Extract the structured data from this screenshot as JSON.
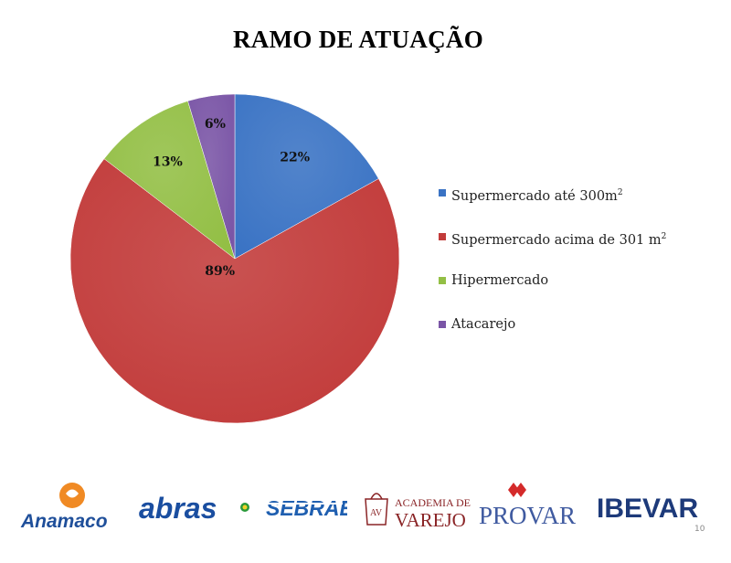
{
  "slide": {
    "title": "RAMO DE ATUAÇÃO",
    "page_number": "10"
  },
  "chart_data": {
    "type": "pie",
    "title": "RAMO DE ATUAÇÃO",
    "categories": [
      "Supermercado até 300m²",
      "Supermercado acima de 301 m²",
      "Hipermercado",
      "Atacarejo"
    ],
    "values": [
      22,
      89,
      13,
      6
    ],
    "labels": [
      "22%",
      "89%",
      "13%",
      "6%"
    ],
    "colors": [
      "#3a73c4",
      "#c23b3a",
      "#93bf45",
      "#7a55a6"
    ],
    "legend": "right",
    "start_angle": "12 o'clock, clockwise"
  },
  "legend": [
    {
      "text": "Supermercado até 300m",
      "sup": "2",
      "color": "#3a73c4"
    },
    {
      "text": "Supermercado acima de 301 m",
      "sup": "2",
      "color": "#c23b3a"
    },
    {
      "text": "Hipermercado",
      "sup": "",
      "color": "#93bf45"
    },
    {
      "text": "Atacarejo",
      "sup": "",
      "color": "#7a55a6"
    }
  ],
  "logos": [
    {
      "name": "Anamaco",
      "text": "Anamaco",
      "color": "#1f4f9a",
      "accent": "#f08a24"
    },
    {
      "name": "abras",
      "text": "abras",
      "color": "#1a4ea0",
      "accent": "#2a9a3a"
    },
    {
      "name": "SEBRAE",
      "text": "SEBRAE",
      "color": "#1f5fb0"
    },
    {
      "name": "Academia de Varejo",
      "line1": "ACADEMIA DE",
      "line2": "VAREJO",
      "mark": "AV",
      "color": "#8a2426"
    },
    {
      "name": "PROVAR",
      "text": "PROVAR",
      "color": "#3f5aa0",
      "accent": "#d42a2a"
    },
    {
      "name": "IBEVAR",
      "text": "IBEVAR",
      "color": "#1d3a7a"
    }
  ]
}
